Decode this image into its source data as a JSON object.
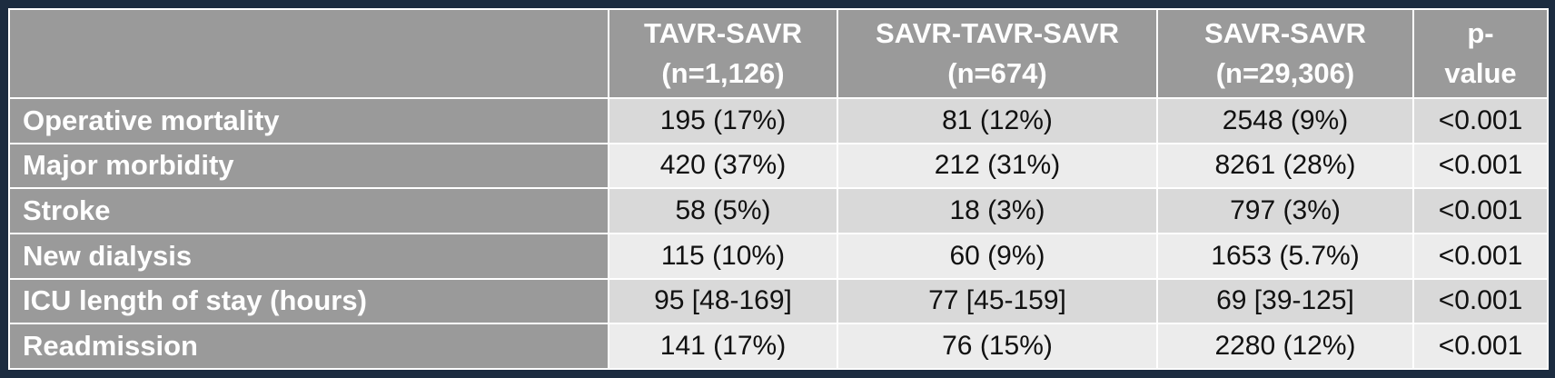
{
  "table": {
    "headers": [
      {
        "line1": "",
        "line2": ""
      },
      {
        "line1": "TAVR-SAVR",
        "line2": "(n=1,126)"
      },
      {
        "line1": "SAVR-TAVR-SAVR",
        "line2": "(n=674)"
      },
      {
        "line1": "SAVR-SAVR",
        "line2": "(n=29,306)"
      },
      {
        "line1": "p-",
        "line2": "value"
      }
    ],
    "rows": [
      {
        "label": "Operative mortality",
        "cells": [
          "195 (17%)",
          "81 (12%)",
          "2548 (9%)",
          "<0.001"
        ]
      },
      {
        "label": "Major morbidity",
        "cells": [
          "420 (37%)",
          "212 (31%)",
          "8261 (28%)",
          "<0.001"
        ]
      },
      {
        "label": "Stroke",
        "cells": [
          "58 (5%)",
          "18 (3%)",
          "797 (3%)",
          "<0.001"
        ]
      },
      {
        "label": "New dialysis",
        "cells": [
          "115 (10%)",
          "60 (9%)",
          "1653 (5.7%)",
          "<0.001"
        ]
      },
      {
        "label": "ICU length of stay (hours)",
        "cells": [
          "95 [48-169]",
          "77 [45-159]",
          "69 [39-125]",
          "<0.001"
        ]
      },
      {
        "label": "Readmission",
        "cells": [
          "141 (17%)",
          "76 (15%)",
          "2280 (12%)",
          "<0.001"
        ]
      }
    ]
  }
}
